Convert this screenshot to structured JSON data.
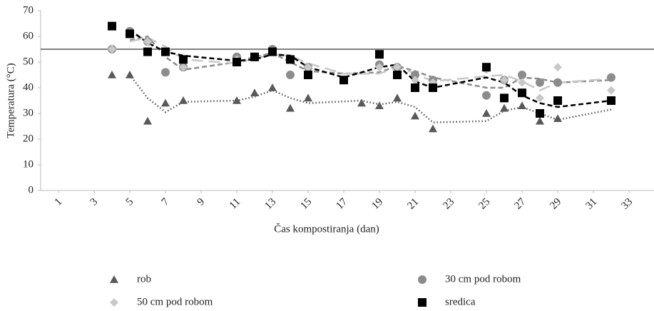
{
  "chart_data": {
    "type": "scatter",
    "x_label": "Čas kompostiranja (dan)",
    "y_label": "Temperatura (°C)",
    "x": [
      4,
      5,
      6,
      7,
      8,
      11,
      12,
      13,
      14,
      15,
      17,
      18,
      19,
      20,
      21,
      22,
      25,
      26,
      27,
      28,
      29,
      32
    ],
    "xlim": [
      0,
      34.4
    ],
    "xticks": [
      1,
      3,
      5,
      7,
      9,
      11,
      13,
      15,
      17,
      19,
      21,
      23,
      25,
      27,
      29,
      31,
      33
    ],
    "ylim": [
      0,
      70
    ],
    "yticks": [
      0,
      10,
      20,
      30,
      40,
      50,
      60,
      70
    ],
    "reference_line": 55,
    "trendline": "moving_average",
    "series": [
      {
        "name": "rob",
        "marker": "triangle",
        "color": "#595959",
        "trend_style": "dotted",
        "values": [
          45,
          45,
          27,
          34,
          35,
          35,
          38,
          40,
          32,
          36,
          null,
          34,
          33,
          36,
          29,
          24,
          30,
          32,
          33,
          27,
          28,
          35
        ]
      },
      {
        "name": "30 cm pod robom",
        "marker": "circle",
        "color": "#8c8c8c",
        "trend_style": "dashed",
        "values": [
          55,
          62,
          58,
          46,
          48,
          52,
          52,
          55,
          45,
          48,
          43,
          null,
          49,
          48,
          45,
          43,
          37,
          43,
          45,
          42,
          42,
          44
        ]
      },
      {
        "name": "50 cm pod robom",
        "marker": "diamond",
        "color": "#c8c8c8",
        "trend_style": "longdash",
        "values": [
          55,
          61,
          58,
          54,
          48,
          51,
          52,
          54,
          51,
          48,
          43,
          null,
          48,
          48,
          43,
          42,
          47,
          43,
          42,
          36,
          48,
          39
        ]
      },
      {
        "name": "sredica",
        "marker": "square",
        "color": "#000000",
        "trend_style": "dashed",
        "values": [
          64,
          61,
          54,
          54,
          51,
          50,
          52,
          54,
          51,
          45,
          43,
          null,
          53,
          45,
          40,
          40,
          48,
          36,
          38,
          30,
          35,
          35
        ]
      }
    ],
    "legend": "bottom"
  }
}
